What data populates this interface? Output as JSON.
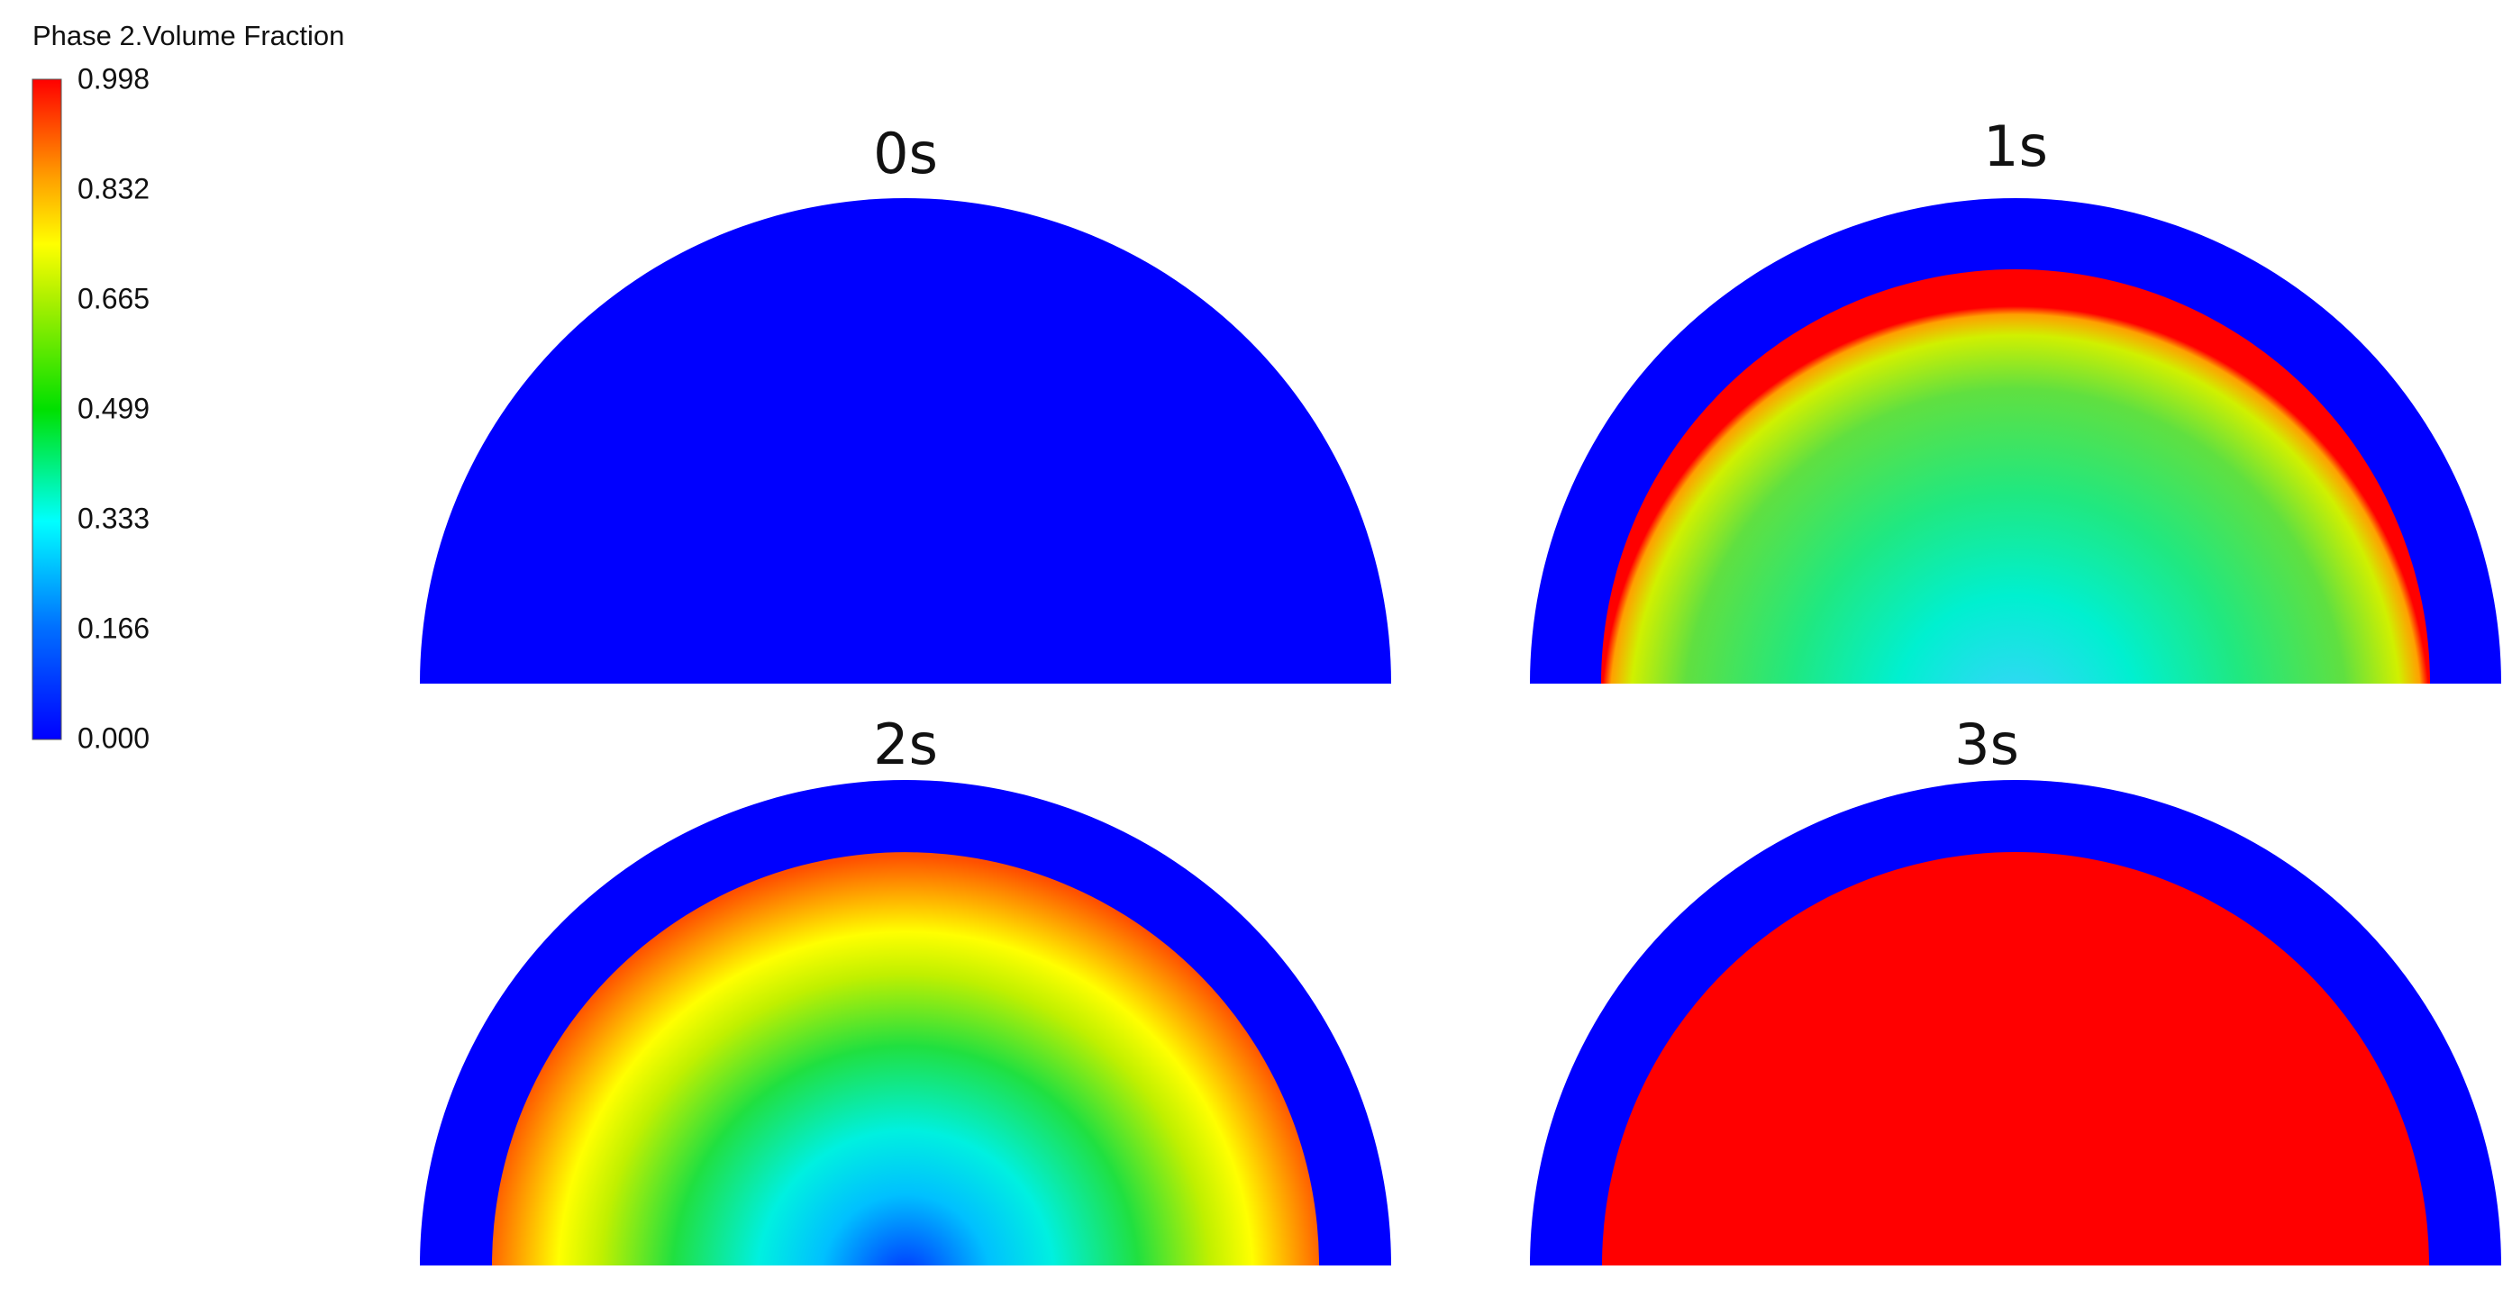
{
  "legend": {
    "title": "Phase 2.Volume Fraction",
    "ticks": [
      "0.998",
      "0.832",
      "0.665",
      "0.499",
      "0.333",
      "0.166",
      "0.000"
    ]
  },
  "panels": [
    {
      "label": "0s"
    },
    {
      "label": "1s"
    },
    {
      "label": "2s"
    },
    {
      "label": "3s"
    }
  ]
}
